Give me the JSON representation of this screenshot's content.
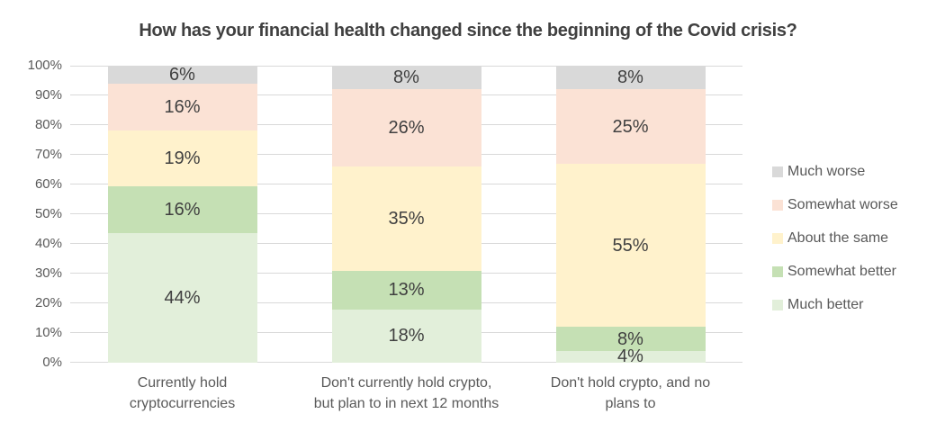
{
  "chart_data": {
    "type": "bar",
    "stacked": true,
    "percent_stacked": true,
    "title": "How has your financial health changed since the beginning of the Covid crisis?",
    "categories": [
      "Currently hold\ncryptocurrencies",
      "Don't currently hold crypto,\nbut plan to in next 12 months",
      "Don't hold crypto, and no\nplans to"
    ],
    "series": [
      {
        "name": "Much better",
        "color": "#e2efda",
        "values": [
          44,
          18,
          4
        ]
      },
      {
        "name": "Somewhat better",
        "color": "#c5e0b4",
        "values": [
          16,
          13,
          8
        ]
      },
      {
        "name": "About the same",
        "color": "#fff2cc",
        "values": [
          19,
          35,
          55
        ]
      },
      {
        "name": "Somewhat worse",
        "color": "#fbe2d5",
        "values": [
          16,
          26,
          25
        ]
      },
      {
        "name": "Much worse",
        "color": "#d9d9d9",
        "values": [
          6,
          8,
          8
        ]
      }
    ],
    "data_label_suffix": "%",
    "xlabel": "",
    "ylabel": "",
    "ylim": [
      0,
      100
    ],
    "y_ticks": [
      "0%",
      "10%",
      "20%",
      "30%",
      "40%",
      "50%",
      "60%",
      "70%",
      "80%",
      "90%",
      "100%"
    ],
    "grid": true,
    "legend_position": "right",
    "legend_order": [
      "Much worse",
      "Somewhat worse",
      "About the same",
      "Somewhat better",
      "Much better"
    ]
  },
  "colors": {
    "background": "#ffffff",
    "title_text": "#404040",
    "axis_text": "#595959",
    "data_label_text": "#404040",
    "gridline": "#d9d9d9"
  }
}
